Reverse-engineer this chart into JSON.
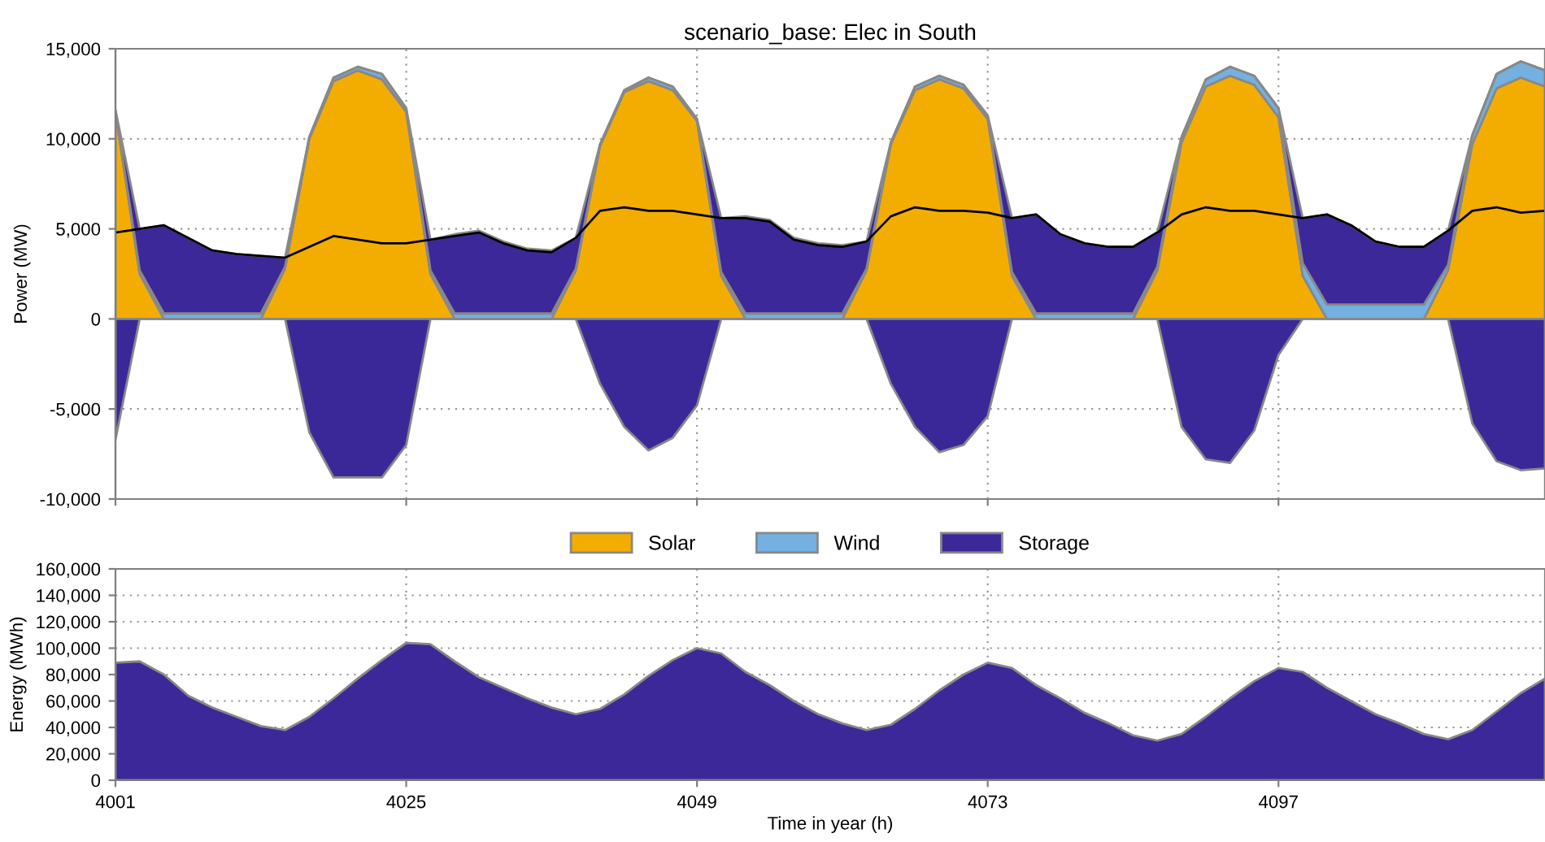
{
  "chart_data": [
    {
      "type": "area",
      "title": "scenario_base: Elec in South",
      "ylabel": "Power (MW)",
      "stacked": true,
      "grid": true,
      "legend": "bottom",
      "tick_labels": "y",
      "x": [
        4001,
        4003,
        4005,
        4007,
        4009,
        4011,
        4013,
        4015,
        4017,
        4019,
        4021,
        4023,
        4025,
        4027,
        4029,
        4031,
        4033,
        4035,
        4037,
        4039,
        4041,
        4043,
        4045,
        4047,
        4049,
        4051,
        4053,
        4055,
        4057,
        4059,
        4061,
        4063,
        4065,
        4067,
        4069,
        4071,
        4073,
        4075,
        4077,
        4079,
        4081,
        4083,
        4085,
        4087,
        4089,
        4091,
        4093,
        4095,
        4097,
        4099,
        4101,
        4103,
        4105,
        4107,
        4109,
        4111,
        4113,
        4115,
        4117,
        4119
      ],
      "xlim": [
        4001,
        4119
      ],
      "xticks": [
        4001,
        4025,
        4049,
        4073,
        4097
      ],
      "ylim": [
        -10000,
        15000
      ],
      "yticks": [
        {
          "value": -10000,
          "label": "-10,000"
        },
        {
          "value": -5000,
          "label": "-5,000"
        },
        0,
        {
          "value": 5000,
          "label": "5,000"
        },
        {
          "value": 10000,
          "label": "10,000"
        },
        {
          "value": 15000,
          "label": "15,000"
        }
      ],
      "series": [
        {
          "name": "Solar",
          "color": "#f3ad00",
          "values": [
            11500,
            2500,
            0,
            0,
            0,
            0,
            0,
            2800,
            10000,
            13200,
            13800,
            13300,
            11500,
            2500,
            0,
            0,
            0,
            0,
            0,
            2700,
            9600,
            12600,
            13200,
            12700,
            11000,
            2400,
            0,
            0,
            0,
            0,
            0,
            2700,
            9700,
            12700,
            13300,
            12800,
            11100,
            2400,
            0,
            0,
            0,
            0,
            0,
            2700,
            9800,
            12900,
            13500,
            13000,
            11200,
            2400,
            0,
            0,
            0,
            0,
            0,
            2700,
            9700,
            12800,
            13400,
            12900
          ]
        },
        {
          "name": "Wind",
          "color": "#74b0e0",
          "values": [
            100,
            200,
            300,
            300,
            300,
            300,
            300,
            100,
            100,
            200,
            200,
            300,
            200,
            200,
            300,
            300,
            300,
            300,
            300,
            100,
            100,
            100,
            200,
            200,
            100,
            200,
            300,
            300,
            300,
            300,
            300,
            100,
            100,
            200,
            200,
            200,
            200,
            200,
            300,
            300,
            300,
            300,
            300,
            200,
            300,
            400,
            500,
            500,
            500,
            700,
            800,
            800,
            800,
            800,
            800,
            300,
            500,
            800,
            900,
            900
          ]
        },
        {
          "name": "Storage",
          "color": "#3c2898",
          "values": [
            0,
            2300,
            4900,
            4200,
            3500,
            3300,
            3200,
            500,
            0,
            0,
            0,
            0,
            0,
            1700,
            4400,
            4600,
            4000,
            3600,
            3500,
            1700,
            0,
            0,
            0,
            0,
            0,
            3000,
            5400,
            5200,
            4200,
            3900,
            3800,
            1500,
            0,
            0,
            0,
            0,
            0,
            3000,
            5500,
            4400,
            3900,
            3700,
            3700,
            1900,
            0,
            0,
            0,
            0,
            0,
            2500,
            5000,
            4400,
            3500,
            3200,
            3200,
            1900,
            0,
            0,
            0,
            0
          ]
        },
        {
          "type": "line",
          "color": "#000000",
          "values": [
            4800,
            5000,
            5200,
            4500,
            3800,
            3600,
            3500,
            3400,
            4000,
            4600,
            4400,
            4200,
            4200,
            4400,
            4600,
            4800,
            4200,
            3800,
            3700,
            4500,
            6000,
            6200,
            6000,
            6000,
            5800,
            5600,
            5600,
            5400,
            4400,
            4100,
            4000,
            4300,
            5700,
            6200,
            6000,
            6000,
            5900,
            5600,
            5800,
            4700,
            4200,
            4000,
            4000,
            4800,
            5800,
            6200,
            6000,
            6000,
            5800,
            5600,
            5800,
            5200,
            4300,
            4000,
            4000,
            4900,
            6000,
            6200,
            5900,
            6000
          ]
        }
      ]
    },
    {
      "type": "area",
      "tick_labels": false,
      "x": [
        4001,
        4003,
        4005,
        4007,
        4009,
        4011,
        4013,
        4015,
        4017,
        4019,
        4021,
        4023,
        4025,
        4027,
        4029,
        4031,
        4033,
        4035,
        4037,
        4039,
        4041,
        4043,
        4045,
        4047,
        4049,
        4051,
        4053,
        4055,
        4057,
        4059,
        4061,
        4063,
        4065,
        4067,
        4069,
        4071,
        4073,
        4075,
        4077,
        4079,
        4081,
        4083,
        4085,
        4087,
        4089,
        4091,
        4093,
        4095,
        4097,
        4099,
        4101,
        4103,
        4105,
        4107,
        4109,
        4111,
        4113,
        4115,
        4117,
        4119
      ],
      "xlim": [
        4001,
        4119
      ],
      "ylim": [
        -10000,
        15000
      ],
      "series": [
        {
          "color": "#3b2898",
          "values": [
            -6700,
            0,
            0,
            0,
            0,
            0,
            0,
            0,
            -6300,
            -8800,
            -8800,
            -8800,
            -7000,
            0,
            0,
            0,
            0,
            0,
            0,
            0,
            -3600,
            -6000,
            -7300,
            -6600,
            -4800,
            0,
            0,
            0,
            0,
            0,
            0,
            0,
            -3600,
            -6000,
            -7400,
            -7000,
            -5400,
            0,
            0,
            0,
            0,
            0,
            0,
            0,
            -6000,
            -7800,
            -8000,
            -6200,
            -2000,
            0,
            0,
            0,
            0,
            0,
            0,
            0,
            -5800,
            -7900,
            -8400,
            -8300
          ]
        }
      ]
    },
    {
      "type": "area",
      "xlabel": "Time in year (h)",
      "ylabel": "Energy (MWh)",
      "grid": true,
      "x": [
        4001,
        4003,
        4005,
        4007,
        4009,
        4011,
        4013,
        4015,
        4017,
        4019,
        4021,
        4023,
        4025,
        4027,
        4029,
        4031,
        4033,
        4035,
        4037,
        4039,
        4041,
        4043,
        4045,
        4047,
        4049,
        4051,
        4053,
        4055,
        4057,
        4059,
        4061,
        4063,
        4065,
        4067,
        4069,
        4071,
        4073,
        4075,
        4077,
        4079,
        4081,
        4083,
        4085,
        4087,
        4089,
        4091,
        4093,
        4095,
        4097,
        4099,
        4101,
        4103,
        4105,
        4107,
        4109,
        4111,
        4113,
        4115,
        4117,
        4119
      ],
      "xlim": [
        4001,
        4119
      ],
      "xticks": [
        4001,
        4025,
        4049,
        4073,
        4097
      ],
      "ylim": [
        0,
        160000
      ],
      "yticks": [
        0,
        {
          "value": 20000,
          "label": "20,000"
        },
        {
          "value": 40000,
          "label": "40,000"
        },
        {
          "value": 60000,
          "label": "60,000"
        },
        {
          "value": 80000,
          "label": "80,000"
        },
        {
          "value": 100000,
          "label": "100,000"
        },
        {
          "value": 120000,
          "label": "120,000"
        },
        {
          "value": 140000,
          "label": "140,000"
        },
        {
          "value": 160000,
          "label": "160,000"
        }
      ],
      "series": [
        {
          "color": "#3c2898",
          "values": [
            89000,
            90000,
            80000,
            64000,
            55000,
            48000,
            41000,
            38000,
            48000,
            62000,
            77000,
            91000,
            104000,
            103000,
            90000,
            78000,
            70000,
            62000,
            55000,
            50000,
            54000,
            65000,
            79000,
            91000,
            100000,
            96000,
            82000,
            72000,
            60000,
            50000,
            43000,
            38000,
            42000,
            54000,
            68000,
            80000,
            89000,
            85000,
            72000,
            62000,
            51000,
            43000,
            34000,
            30000,
            35000,
            48000,
            62000,
            75000,
            85000,
            82000,
            70000,
            60000,
            50000,
            43000,
            35000,
            31000,
            38000,
            52000,
            66000,
            77000
          ]
        }
      ]
    }
  ]
}
